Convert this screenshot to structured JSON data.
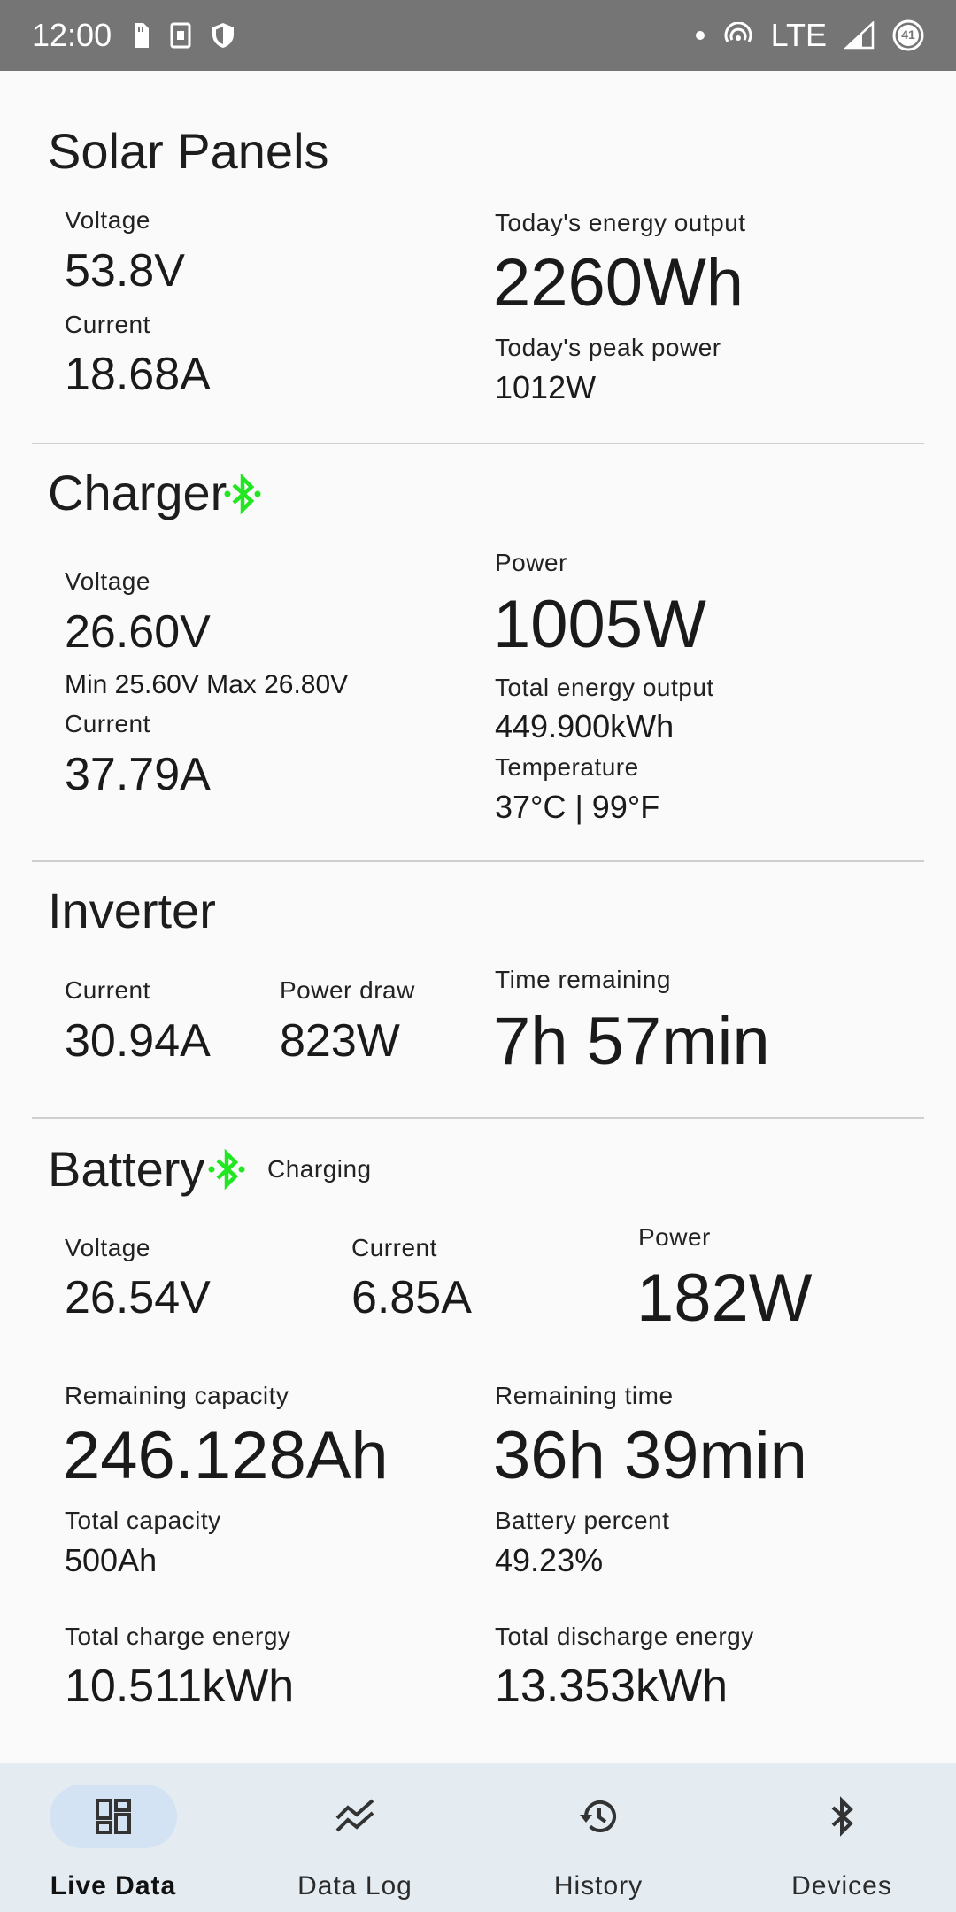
{
  "status_bar": {
    "time": "12:00",
    "network": "LTE",
    "battery_level": "41"
  },
  "solar": {
    "title": "Solar Panels",
    "voltage_label": "Voltage",
    "voltage": "53.8V",
    "current_label": "Current",
    "current": "18.68A",
    "energy_label": "Today's energy output",
    "energy": "2260Wh",
    "peak_label": "Today's peak power",
    "peak": "1012W"
  },
  "charger": {
    "title": "Charger",
    "voltage_label": "Voltage",
    "voltage": "26.60V",
    "minmax": "Min 25.60V Max 26.80V",
    "current_label": "Current",
    "current": "37.79A",
    "power_label": "Power",
    "power": "1005W",
    "total_label": "Total energy output",
    "total": "449.900kWh",
    "temp_label": "Temperature",
    "temp": "37°C | 99°F"
  },
  "inverter": {
    "title": "Inverter",
    "current_label": "Current",
    "current": "30.94A",
    "power_label": "Power draw",
    "power": "823W",
    "time_label": "Time remaining",
    "time": "7h 57min"
  },
  "battery": {
    "title": "Battery",
    "status": "Charging",
    "voltage_label": "Voltage",
    "voltage": "26.54V",
    "current_label": "Current",
    "current": "6.85A",
    "power_label": "Power",
    "power": "182W",
    "rem_cap_label": "Remaining capacity",
    "rem_cap": "246.128Ah",
    "rem_time_label": "Remaining time",
    "rem_time": "36h 39min",
    "total_cap_label": "Total capacity",
    "total_cap": "500Ah",
    "percent_label": "Battery percent",
    "percent": "49.23%",
    "charge_label": "Total charge energy",
    "charge": "10.511kWh",
    "discharge_label": "Total discharge energy",
    "discharge": "13.353kWh"
  },
  "nav": {
    "items": [
      {
        "label": "Live Data",
        "icon": "dashboard-icon"
      },
      {
        "label": "Data Log",
        "icon": "chart-line-icon"
      },
      {
        "label": "History",
        "icon": "history-icon"
      },
      {
        "label": "Devices",
        "icon": "bluetooth-icon"
      }
    ]
  },
  "colors": {
    "bluetooth_connected": "#22e622",
    "nav_background": "#e4ebf1",
    "nav_active_pill": "#d3e3f4",
    "status_bar": "#757575"
  }
}
